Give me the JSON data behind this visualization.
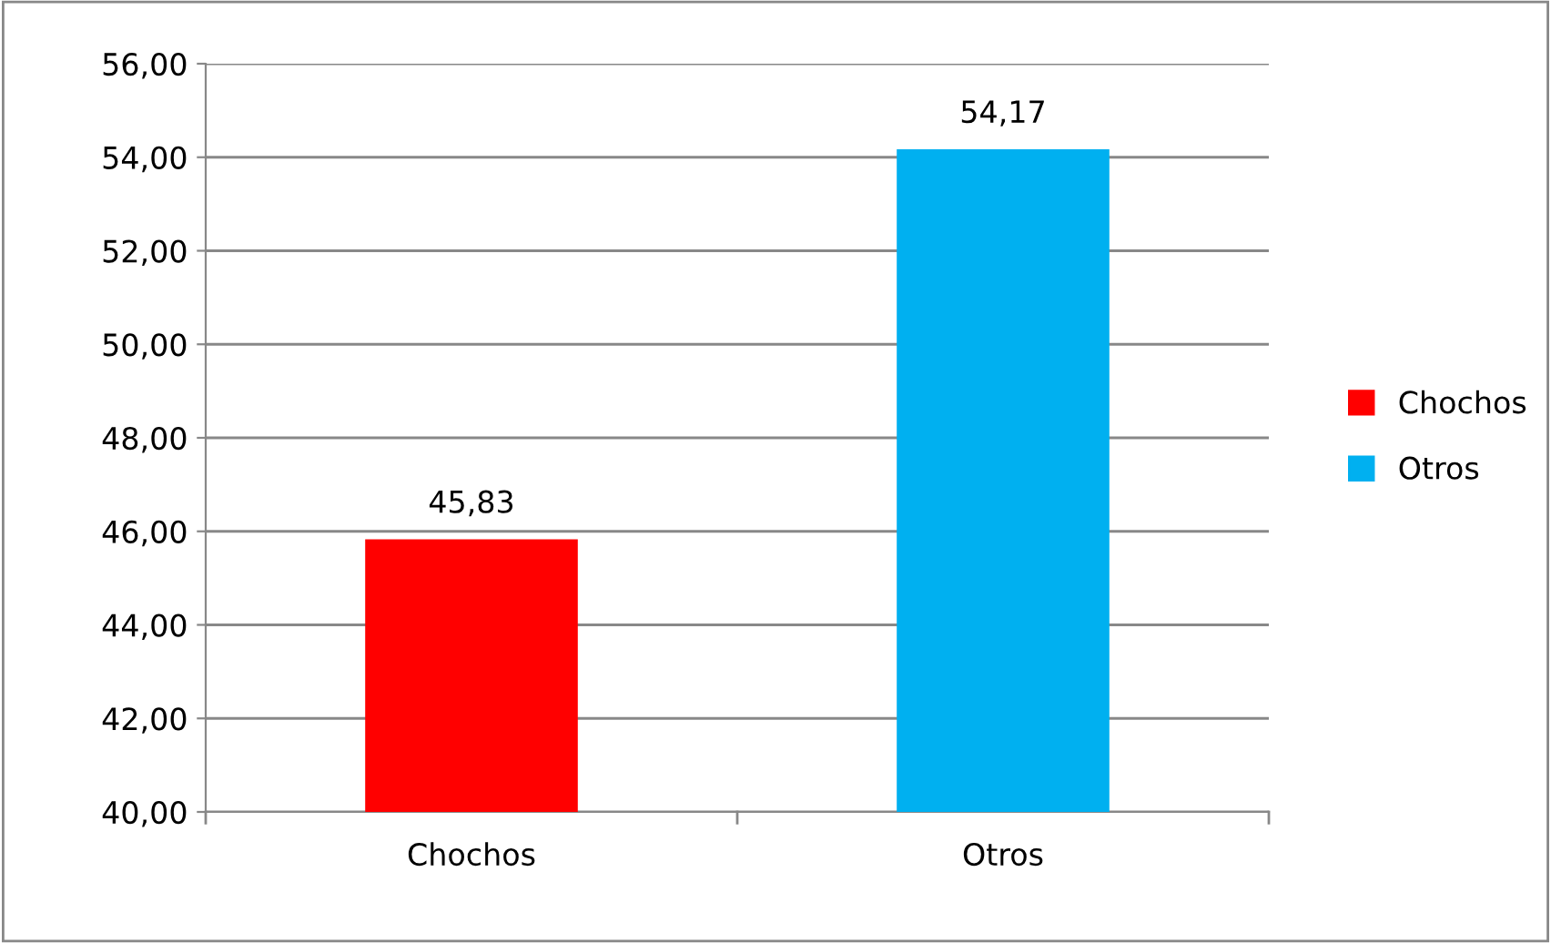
{
  "chart_data": {
    "type": "bar",
    "categories": [
      "Chochos",
      "Otros"
    ],
    "series": [
      {
        "name": "Chochos",
        "color": "#ff0000",
        "values": [
          45.83,
          null
        ],
        "value_labels": [
          "45,83",
          null
        ]
      },
      {
        "name": "Otros",
        "color": "#00b0f0",
        "values": [
          null,
          54.17
        ],
        "value_labels": [
          null,
          "54,17"
        ]
      }
    ],
    "ylim": [
      40,
      56
    ],
    "yticks": [
      {
        "value": 40,
        "label": "40,00"
      },
      {
        "value": 42,
        "label": "42,00"
      },
      {
        "value": 44,
        "label": "44,00"
      },
      {
        "value": 46,
        "label": "46,00"
      },
      {
        "value": 48,
        "label": "48,00"
      },
      {
        "value": 50,
        "label": "50,00"
      },
      {
        "value": 52,
        "label": "52,00"
      },
      {
        "value": 54,
        "label": "54,00"
      },
      {
        "value": 56,
        "label": "56,00"
      }
    ],
    "grid": "y",
    "legend": "right"
  }
}
